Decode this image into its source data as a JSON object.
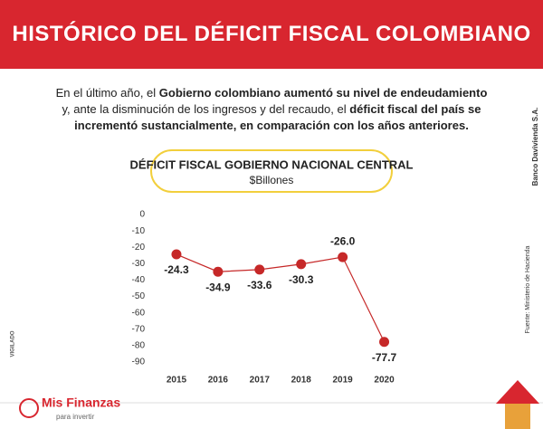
{
  "header": {
    "title": "HISTÓRICO DEL DÉFICIT FISCAL COLOMBIANO"
  },
  "intro": {
    "segments": [
      {
        "text": "En el último año, el ",
        "bold": false
      },
      {
        "text": "Gobierno colombiano aumentó su nivel de endeudamiento",
        "bold": true
      },
      {
        "text": " y, ante la disminución de los ingresos y del recaudo, el ",
        "bold": false
      },
      {
        "text": "déficit fiscal del país se incrementó sustancialmente, en comparación con los años anteriores.",
        "bold": true
      }
    ]
  },
  "chart_data": {
    "type": "line",
    "title": "DÉFICIT FISCAL GOBIERNO NACIONAL CENTRAL",
    "subtitle": "$Billones",
    "categories": [
      "2015",
      "2016",
      "2017",
      "2018",
      "2019",
      "2020"
    ],
    "values": [
      -24.3,
      -34.9,
      -33.6,
      -30.3,
      -26.0,
      -77.7
    ],
    "value_labels": [
      "-24.3",
      "-34.9",
      "-33.6",
      "-30.3",
      "-26.0",
      "-77.7"
    ],
    "color": "#c62828",
    "ylim": [
      -90,
      0
    ],
    "yticks": [
      0,
      -10,
      -20,
      -30,
      -40,
      -50,
      -60,
      -70,
      -80,
      -90
    ],
    "grid": false
  },
  "side": {
    "bank": "Banco Davivienda S.A.",
    "source": "Fuente:  Ministerio de Hacienda",
    "vigilado": "VIGILADO"
  },
  "logo": {
    "name": "Mis Finanzas",
    "tagline": "para invertir"
  }
}
